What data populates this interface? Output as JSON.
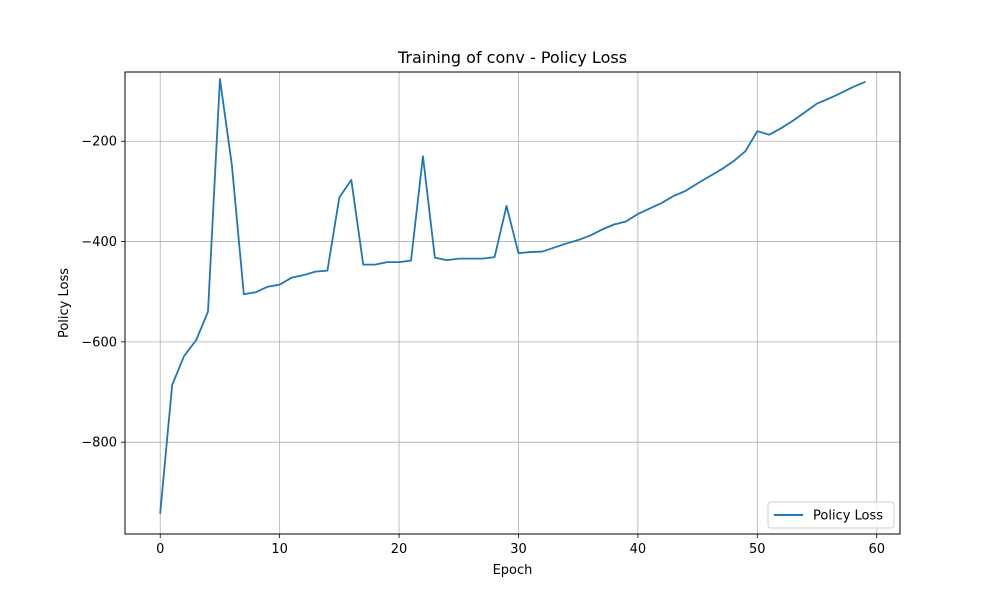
{
  "chart_data": {
    "type": "line",
    "title": "Training of conv - Policy Loss",
    "xlabel": "Epoch",
    "ylabel": "Policy Loss",
    "xlim": [
      -2.95,
      61.95
    ],
    "ylim": [
      -983,
      -62
    ],
    "xticks": [
      0,
      10,
      20,
      30,
      40,
      50,
      60
    ],
    "yticks": [
      -800,
      -600,
      -400,
      -200
    ],
    "ytick_labels": [
      "−800",
      "−600",
      "−400",
      "−200"
    ],
    "grid": true,
    "legend_position": "lower-right",
    "series": [
      {
        "name": "Policy Loss",
        "color": "#1f77b4",
        "x": [
          0,
          1,
          2,
          3,
          4,
          5,
          6,
          7,
          8,
          9,
          10,
          11,
          12,
          13,
          14,
          15,
          16,
          17,
          18,
          19,
          20,
          21,
          22,
          23,
          24,
          25,
          26,
          27,
          28,
          29,
          30,
          31,
          32,
          33,
          34,
          35,
          36,
          37,
          38,
          39,
          40,
          41,
          42,
          43,
          44,
          45,
          46,
          47,
          48,
          49,
          50,
          51,
          52,
          53,
          54,
          55,
          56,
          57,
          58,
          59
        ],
        "values": [
          -941,
          -686,
          -628,
          -597,
          -540,
          -76,
          -248,
          -505,
          -501,
          -490,
          -486,
          -472,
          -467,
          -460,
          -458,
          -312,
          -277,
          -446,
          -446,
          -441,
          -441,
          -438,
          -230,
          -432,
          -437,
          -434,
          -434,
          -434,
          -431,
          -329,
          -423,
          -421,
          -420,
          -412,
          -404,
          -397,
          -388,
          -376,
          -366,
          -360,
          -345,
          -334,
          -323,
          -309,
          -299,
          -284,
          -270,
          -256,
          -240,
          -220,
          -180,
          -187,
          -174,
          -159,
          -142,
          -125,
          -115,
          -104,
          -92,
          -82
        ]
      }
    ]
  }
}
